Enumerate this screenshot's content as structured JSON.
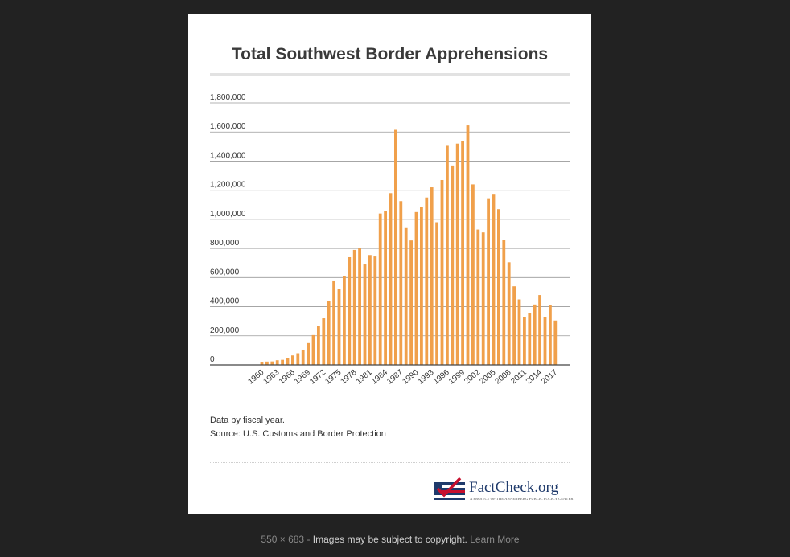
{
  "chart_data": {
    "type": "bar",
    "title": "Total Southwest Border Apprehensions",
    "xlabel": "",
    "ylabel": "",
    "ylim": [
      0,
      1800000
    ],
    "ytick_values": [
      0,
      200000,
      400000,
      600000,
      800000,
      1000000,
      1200000,
      1400000,
      1600000,
      1800000
    ],
    "ytick_labels": [
      "0",
      "200,000",
      "400,000",
      "600,000",
      "800,000",
      "1,000,000",
      "1,200,000",
      "1,400,000",
      "1,600,000",
      "1,800,000"
    ],
    "xtick_labels": [
      "1960",
      "1963",
      "1966",
      "1969",
      "1972",
      "1975",
      "1978",
      "1981",
      "1984",
      "1987",
      "1990",
      "1993",
      "1996",
      "1999",
      "2002",
      "2005",
      "2008",
      "2011",
      "2014",
      "2017"
    ],
    "categories": [
      "1960",
      "1961",
      "1962",
      "1963",
      "1964",
      "1965",
      "1966",
      "1967",
      "1968",
      "1969",
      "1970",
      "1971",
      "1972",
      "1973",
      "1974",
      "1975",
      "1976",
      "1977",
      "1978",
      "1979",
      "1980",
      "1981",
      "1982",
      "1983",
      "1984",
      "1985",
      "1986",
      "1987",
      "1988",
      "1989",
      "1990",
      "1991",
      "1992",
      "1993",
      "1994",
      "1995",
      "1996",
      "1997",
      "1998",
      "1999",
      "2000",
      "2001",
      "2002",
      "2003",
      "2004",
      "2005",
      "2006",
      "2007",
      "2008",
      "2009",
      "2010",
      "2011",
      "2012",
      "2013",
      "2014",
      "2015",
      "2016",
      "2017"
    ],
    "values": [
      21000,
      23000,
      24000,
      32000,
      35000,
      45000,
      65000,
      80000,
      105000,
      150000,
      205000,
      265000,
      320000,
      440000,
      580000,
      520000,
      610000,
      740000,
      790000,
      800000,
      690000,
      755000,
      745000,
      1040000,
      1060000,
      1180000,
      1615000,
      1125000,
      940000,
      855000,
      1050000,
      1085000,
      1150000,
      1220000,
      980000,
      1270000,
      1505000,
      1370000,
      1520000,
      1535000,
      1645000,
      1240000,
      930000,
      910000,
      1145000,
      1175000,
      1070000,
      860000,
      705000,
      540000,
      450000,
      330000,
      355000,
      415000,
      480000,
      330000,
      410000,
      305000
    ],
    "color": "#f0a04b"
  },
  "notes": {
    "line1": "Data by fiscal year.",
    "line2": "Source: U.S. Customs and Border Protection"
  },
  "logo": {
    "name": "FactCheck.org",
    "tagline": "A PROJECT OF THE ANNENBERG PUBLIC POLICY CENTER"
  },
  "footer": {
    "dimensions": "550 × 683",
    "separator": "-",
    "copyright": "Images may be subject to copyright.",
    "learn_more": "Learn More"
  }
}
